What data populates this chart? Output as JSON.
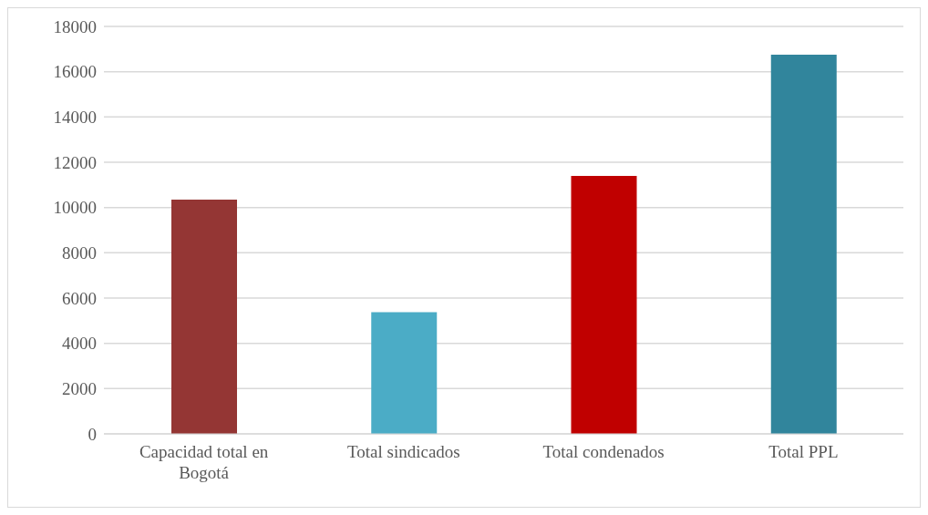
{
  "chart_data": {
    "type": "bar",
    "categories": [
      "Capacidad total en Bogotá",
      "Total sindicados",
      "Total condenados",
      "Total PPL"
    ],
    "values": [
      10350,
      5380,
      11400,
      16750
    ],
    "colors": [
      "#943634",
      "#4bacc6",
      "#c00000",
      "#31859c"
    ],
    "ylim": [
      0,
      18000
    ],
    "yticks": [
      0,
      2000,
      4000,
      6000,
      8000,
      10000,
      12000,
      14000,
      16000,
      18000
    ],
    "grid": "y"
  }
}
